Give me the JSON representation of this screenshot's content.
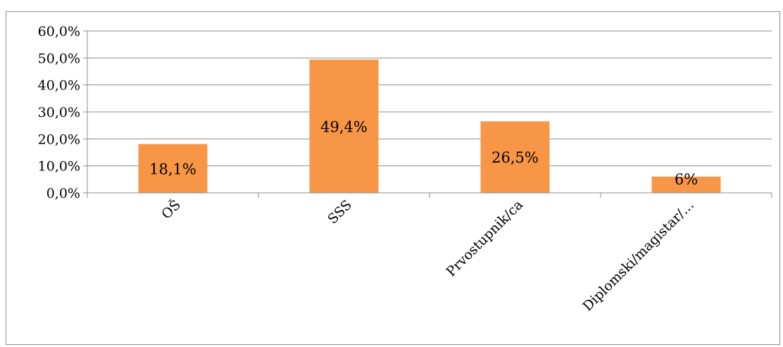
{
  "chart_data": {
    "type": "bar",
    "title": "",
    "xlabel": "",
    "ylabel": "",
    "categories": [
      "OŠ",
      "SSS",
      "Prvostupnik/ca",
      "Diplomski/magistar/…"
    ],
    "values": [
      18.1,
      49.4,
      26.5,
      6.0
    ],
    "data_labels": [
      "18,1%",
      "49,4%",
      "26,5%",
      "6%"
    ],
    "ylim": [
      0,
      60
    ],
    "y_ticks": [
      0,
      10,
      20,
      30,
      40,
      50,
      60
    ],
    "y_tick_labels": [
      "0,0%",
      "10,0%",
      "20,0%",
      "30,0%",
      "40,0%",
      "50,0%",
      "60,0%"
    ],
    "grid": true,
    "legend": "none",
    "bar_color": "#f79646",
    "grid_color": "#8c8c8c"
  }
}
